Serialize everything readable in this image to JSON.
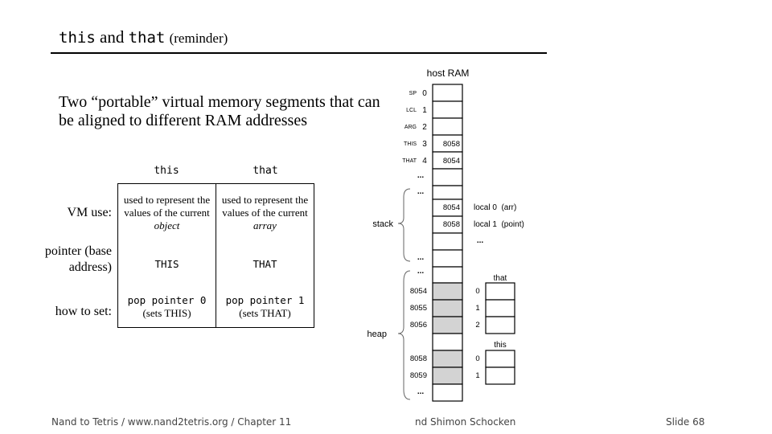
{
  "title": {
    "code1": "this",
    "and": "and",
    "code2": "that",
    "sub": "(reminder)"
  },
  "intro": "Two “portable” virtual memory segments that can be aligned to different RAM addresses",
  "table": {
    "headers": [
      "this",
      "that"
    ],
    "row_labels": {
      "vm_use": "VM use:",
      "pointer": "pointer (base address)",
      "how": "how to set:"
    },
    "vm_use": {
      "this": {
        "pre": "used to represent the values of the current",
        "em": "object"
      },
      "that": {
        "pre": "used to represent the values of the current",
        "em": "array"
      }
    },
    "pointer": {
      "this": "THIS",
      "that": "THAT"
    },
    "how": {
      "this": {
        "code": "pop pointer 0",
        "note": "(sets THIS)"
      },
      "that": {
        "code": "pop pointer 1",
        "note": "(sets THAT)"
      }
    }
  },
  "ram": {
    "title": "host RAM",
    "registers": [
      {
        "name": "SP",
        "index": "0",
        "value": ""
      },
      {
        "name": "LCL",
        "index": "1",
        "value": ""
      },
      {
        "name": "ARG",
        "index": "2",
        "value": ""
      },
      {
        "name": "THIS",
        "index": "3",
        "value": "8058"
      },
      {
        "name": "THAT",
        "index": "4",
        "value": "8054"
      }
    ],
    "ellipsis": "...",
    "stack_label": "stack",
    "stack_cells": [
      "8054",
      "8058"
    ],
    "locals": [
      "local 0  (arr)",
      "local 1  (point)"
    ],
    "heap_label": "heap",
    "heap_addresses": [
      "8054",
      "8055",
      "8056",
      "8058",
      "8059"
    ],
    "that_label": "that",
    "that_indices": [
      "0",
      "1",
      "2"
    ],
    "this_label": "this",
    "this_indices": [
      "0",
      "1"
    ]
  },
  "footer": {
    "left": "Nand to Tetris / www.nand2tetris.org / Chapter 11",
    "center": "nd Shimon Schocken",
    "right": "Slide 68"
  }
}
